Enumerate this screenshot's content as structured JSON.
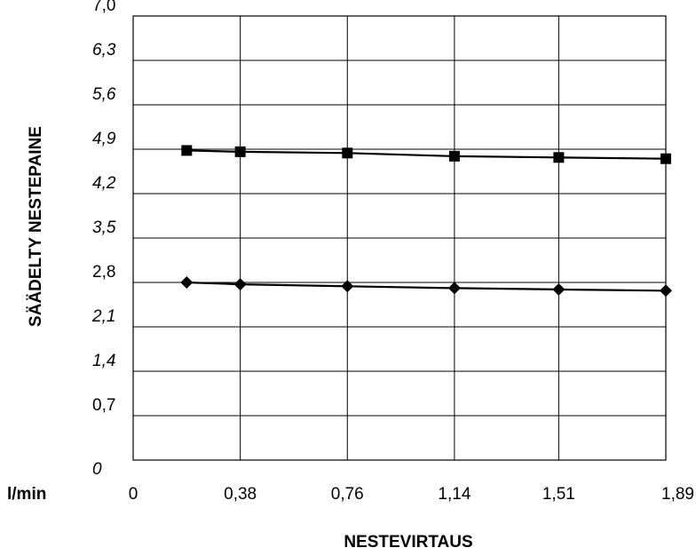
{
  "chart_data": {
    "type": "line",
    "title": "",
    "xlabel": "NESTEVIRTAUS",
    "ylabel": "SÄÄDELTY NESTEPAINE",
    "x_unit": "l/min",
    "x_ticks": [
      {
        "value": 0,
        "label": "0"
      },
      {
        "value": 0.38,
        "label": "0,38"
      },
      {
        "value": 0.76,
        "label": "0,76"
      },
      {
        "value": 1.14,
        "label": "1,14"
      },
      {
        "value": 1.51,
        "label": "1,51"
      },
      {
        "value": 1.89,
        "label": "1,89"
      }
    ],
    "y_ticks": [
      {
        "value": 0,
        "label": "0",
        "italic": true
      },
      {
        "value": 0.7,
        "label": "0,7",
        "italic": false
      },
      {
        "value": 1.4,
        "label": "1,4",
        "italic": true
      },
      {
        "value": 2.1,
        "label": "2,1",
        "italic": true
      },
      {
        "value": 2.8,
        "label": "2,8",
        "italic": false
      },
      {
        "value": 3.5,
        "label": "3,5",
        "italic": true
      },
      {
        "value": 4.2,
        "label": "4,2",
        "italic": true
      },
      {
        "value": 4.9,
        "label": "4,9",
        "italic": true
      },
      {
        "value": 5.6,
        "label": "5,6",
        "italic": true
      },
      {
        "value": 6.3,
        "label": "6,3",
        "italic": true
      },
      {
        "value": 7.0,
        "label": "7,0",
        "italic": false
      }
    ],
    "xlim": [
      0,
      1.89
    ],
    "ylim": [
      0,
      7.0
    ],
    "grid": true,
    "series": [
      {
        "marker": "square",
        "x": [
          0.19,
          0.38,
          0.76,
          1.14,
          1.51,
          1.89
        ],
        "y": [
          4.88,
          4.86,
          4.84,
          4.79,
          4.77,
          4.75
        ]
      },
      {
        "marker": "diamond",
        "x": [
          0.19,
          0.38,
          0.76,
          1.14,
          1.51,
          1.89
        ],
        "y": [
          2.8,
          2.77,
          2.74,
          2.71,
          2.69,
          2.67
        ]
      }
    ]
  }
}
